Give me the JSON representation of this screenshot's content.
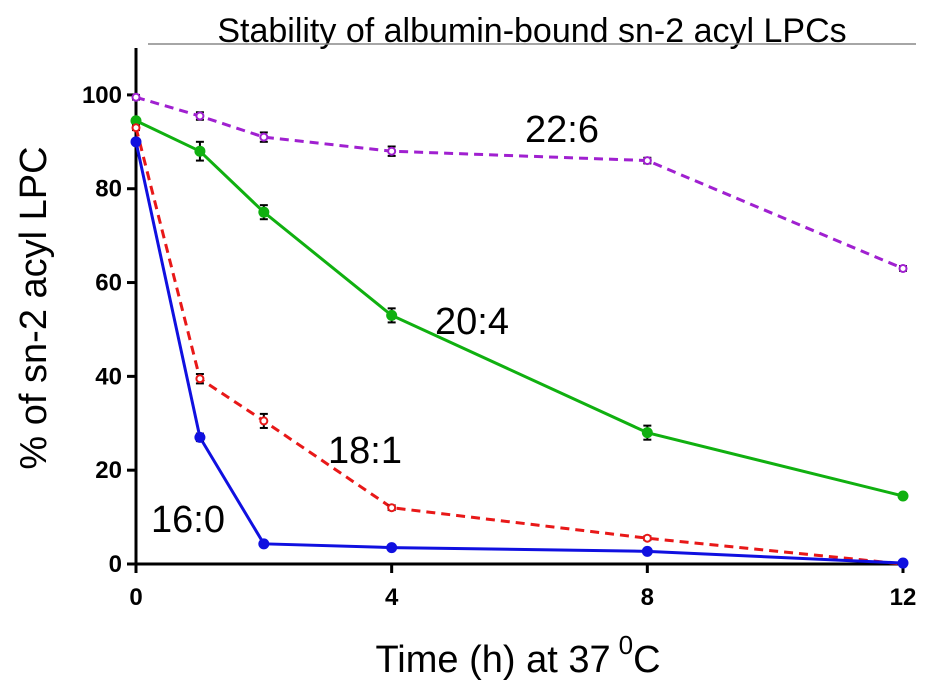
{
  "chart_data": {
    "type": "line",
    "title": "Stability of albumin-bound sn-2 acyl LPCs",
    "xlabel": "Time (h) at 37",
    "xlabel_superscript": "0",
    "xlabel_suffix": "C",
    "ylabel": "% of sn-2 acyl LPC",
    "xlim": [
      0,
      12
    ],
    "ylim": [
      0,
      110
    ],
    "x_ticks": [
      0,
      4,
      8,
      12
    ],
    "x_tick_labels": [
      "0",
      "4",
      "8",
      "12"
    ],
    "y_ticks": [
      0,
      20,
      40,
      60,
      80,
      100
    ],
    "y_tick_labels": [
      "0",
      "20",
      "40",
      "60",
      "80",
      "100"
    ],
    "grid": false,
    "legend": "none",
    "series": [
      {
        "name": "22:6",
        "color": "#a020d0",
        "dashed": true,
        "marker": "open-circle",
        "x": [
          0,
          1,
          2,
          4,
          8,
          12
        ],
        "y": [
          99.5,
          95.5,
          91,
          88,
          86,
          63
        ],
        "err": [
          0.5,
          0.8,
          1,
          1,
          0.6,
          0.5
        ]
      },
      {
        "name": "20:4",
        "color": "#10b010",
        "dashed": false,
        "marker": "filled-circle",
        "x": [
          0,
          1,
          2,
          4,
          8,
          12
        ],
        "y": [
          94.5,
          88,
          75,
          53,
          28,
          14.5
        ],
        "err": [
          0.5,
          2,
          1.5,
          1.5,
          1.5,
          0.5
        ]
      },
      {
        "name": "18:1",
        "color": "#e81818",
        "dashed": true,
        "marker": "open-circle",
        "x": [
          0,
          1,
          2,
          4,
          8,
          12
        ],
        "y": [
          93,
          39.5,
          30.5,
          12,
          5.5,
          0
        ],
        "err": [
          0.5,
          1,
          1.5,
          0.5,
          0.4,
          0.3
        ]
      },
      {
        "name": "16:0",
        "color": "#1010e0",
        "dashed": false,
        "marker": "filled-circle",
        "x": [
          0,
          1,
          2,
          4,
          8,
          12
        ],
        "y": [
          90,
          27,
          4.3,
          3.5,
          2.7,
          0.2
        ],
        "err": [
          0.5,
          0.8,
          0.3,
          0.3,
          0.3,
          0.2
        ]
      }
    ]
  }
}
